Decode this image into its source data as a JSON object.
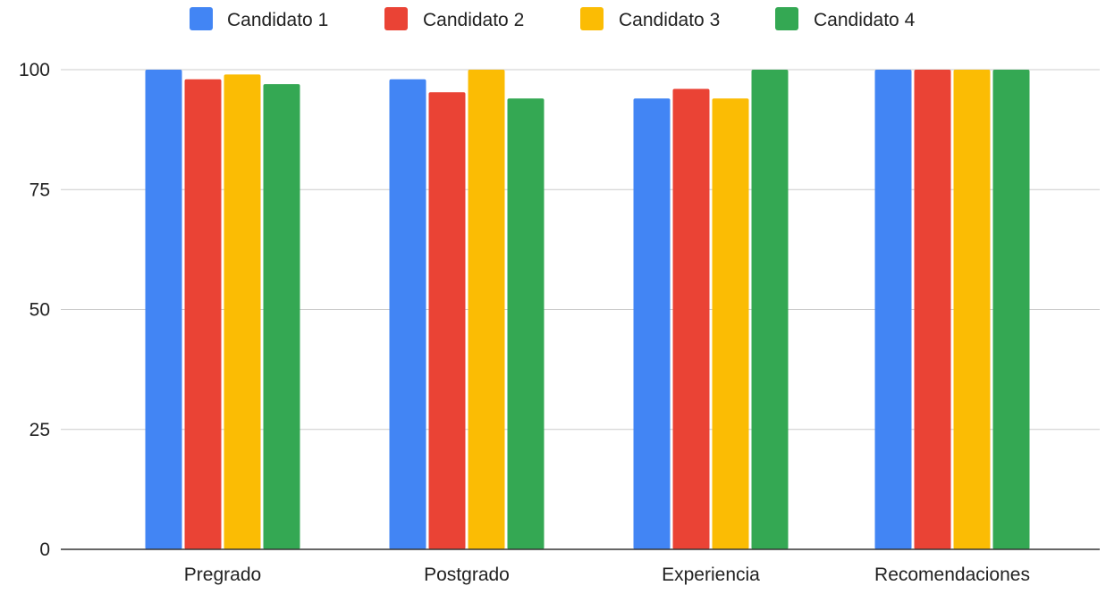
{
  "chart_data": {
    "type": "bar",
    "title": "",
    "xlabel": "",
    "ylabel": "",
    "categories": [
      "Pregrado",
      "Postgrado",
      "Experiencia",
      "Recomendaciones"
    ],
    "series": [
      {
        "name": "Candidato 1",
        "color": "#4285F4",
        "values": [
          100,
          98,
          94,
          100
        ]
      },
      {
        "name": "Candidato 2",
        "color": "#EA4335",
        "values": [
          98,
          95.3,
          96,
          100
        ]
      },
      {
        "name": "Candidato 3",
        "color": "#FBBC04",
        "values": [
          99,
          100,
          94,
          100
        ]
      },
      {
        "name": "Candidato 4",
        "color": "#34A853",
        "values": [
          97,
          94,
          100,
          100
        ]
      }
    ],
    "ylim": [
      0,
      100
    ],
    "yticks": [
      "0",
      "25",
      "50",
      "75",
      "100"
    ],
    "grid": true,
    "legend_position": "top"
  }
}
